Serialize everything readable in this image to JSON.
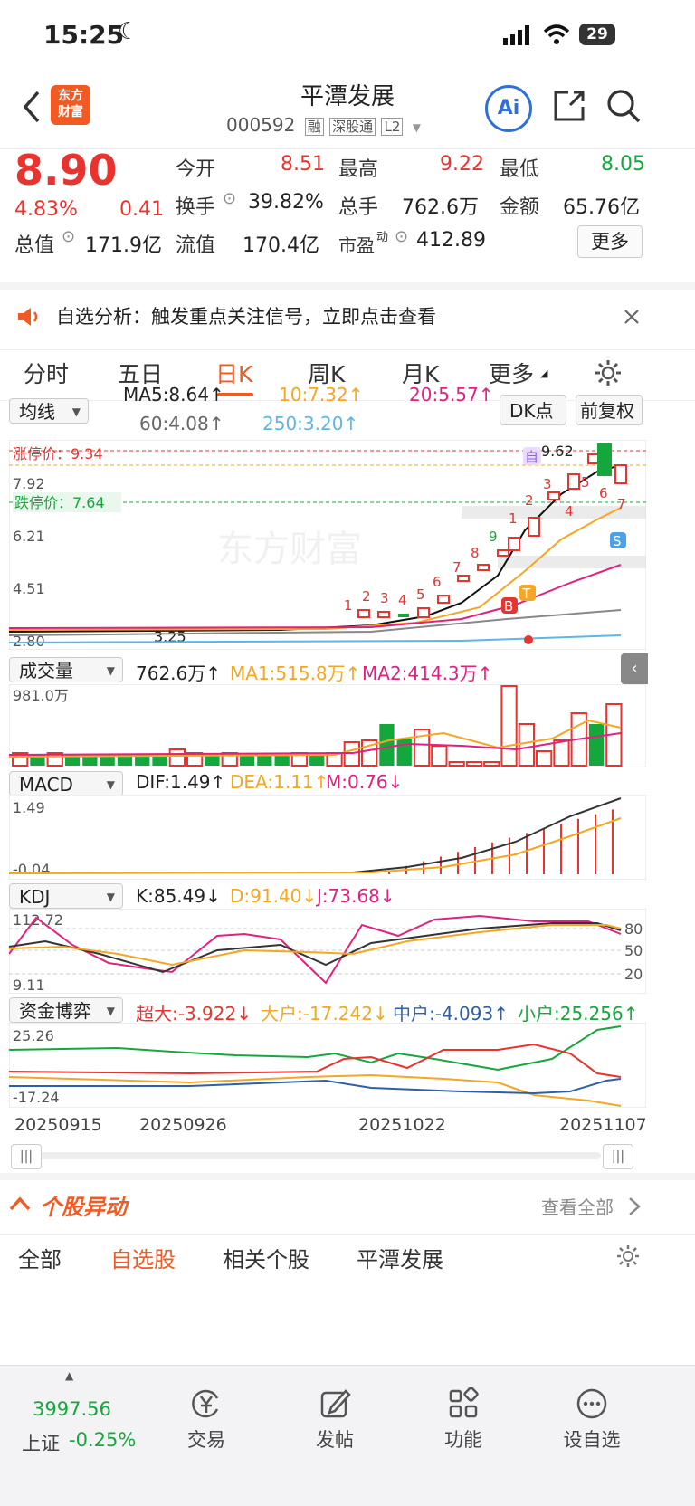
{
  "status_bar": {
    "time": "15:25",
    "battery": "29"
  },
  "header": {
    "title": "平潭发展",
    "code": "000592",
    "tags": [
      "融",
      "深股通",
      "L2"
    ],
    "logo_text_1": "东方",
    "logo_text_2": "财富",
    "ai_label": "Ai"
  },
  "quote": {
    "price": "8.90",
    "change_pct": "4.83%",
    "change": "0.41",
    "open_label": "今开",
    "open": "8.51",
    "high_label": "最高",
    "high": "9.22",
    "low_label": "最低",
    "low": "8.05",
    "turnover_label": "换手",
    "turnover": "39.82%",
    "volume_label": "总手",
    "volume": "762.6万",
    "amount_label": "金额",
    "amount": "65.76亿",
    "mcap_label": "总值",
    "mcap": "171.9亿",
    "float_label": "流值",
    "float": "170.4亿",
    "pe_label": "市盈",
    "pe_sup": "动",
    "pe": "412.89",
    "more_label": "更多"
  },
  "banner": {
    "text": "自选分析：触发重点关注信号，立即点击查看"
  },
  "tabs": [
    "分时",
    "五日",
    "日K",
    "周K",
    "月K",
    "更多"
  ],
  "active_tab": "日K",
  "ma": {
    "select": "均线",
    "ma5": "MA5:8.64",
    "ma10": "10:7.32",
    "ma20": "20:5.57",
    "ma60": "60:4.08",
    "ma250": "250:3.20",
    "dk_label": "DK点",
    "adjust_label": "前复权"
  },
  "kline_labels": {
    "limit_up": "涨停价：9.34",
    "limit_down": "跌停价：7.64",
    "y_top": "9.62",
    "y1": "7.92",
    "y2": "6.21",
    "y3": "4.51",
    "y_bottom": "2.80",
    "high_mark": "9.62",
    "low_mark": "3.25",
    "seq": [
      "1",
      "2",
      "3",
      "4",
      "5",
      "6",
      "7",
      "8",
      "9",
      "1",
      "2",
      "3",
      "4",
      "5",
      "6",
      "7"
    ],
    "watermark": "东方财富",
    "marker_self": "自",
    "marker_b": "B",
    "marker_t": "T",
    "marker_s": "S"
  },
  "volume": {
    "select": "成交量",
    "value": "762.6万",
    "ma1": "MA1:515.8万",
    "ma2": "MA2:414.3万",
    "y_top": "981.0万"
  },
  "macd": {
    "select": "MACD",
    "dif": "DIF:1.49",
    "dea": "DEA:1.11",
    "m": "M:0.76",
    "y_top": "1.49",
    "y_bottom": "-0.04"
  },
  "kdj": {
    "select": "KDJ",
    "k": "K:85.49",
    "d": "D:91.40",
    "j": "J:73.68",
    "y_top": "112.72",
    "y_bottom": "9.11",
    "r80": "80",
    "r50": "50",
    "r20": "20"
  },
  "fund": {
    "select": "资金博弈",
    "super": "超大:-3.922",
    "big": "大户:-17.242",
    "mid": "中户:-4.093",
    "small": "小户:25.256",
    "y_top": "25.26",
    "y_bottom": "-17.24"
  },
  "dates": [
    "20250915",
    "20250926",
    "20251022",
    "20251107"
  ],
  "movement": {
    "title": "个股异动",
    "view_all": "查看全部"
  },
  "sub_tabs": [
    "全部",
    "自选股",
    "相关个股",
    "平潭发展"
  ],
  "active_sub_tab": "自选股",
  "bottom_nav": {
    "index_value": "3997.56",
    "index_name": "上证",
    "index_change": "-0.25%",
    "items": [
      "交易",
      "发帖",
      "功能",
      "设自选"
    ]
  },
  "colors": {
    "up": "#e8332e",
    "down": "#14a83c",
    "accent": "#f15a22",
    "blue": "#2f6fd6"
  }
}
